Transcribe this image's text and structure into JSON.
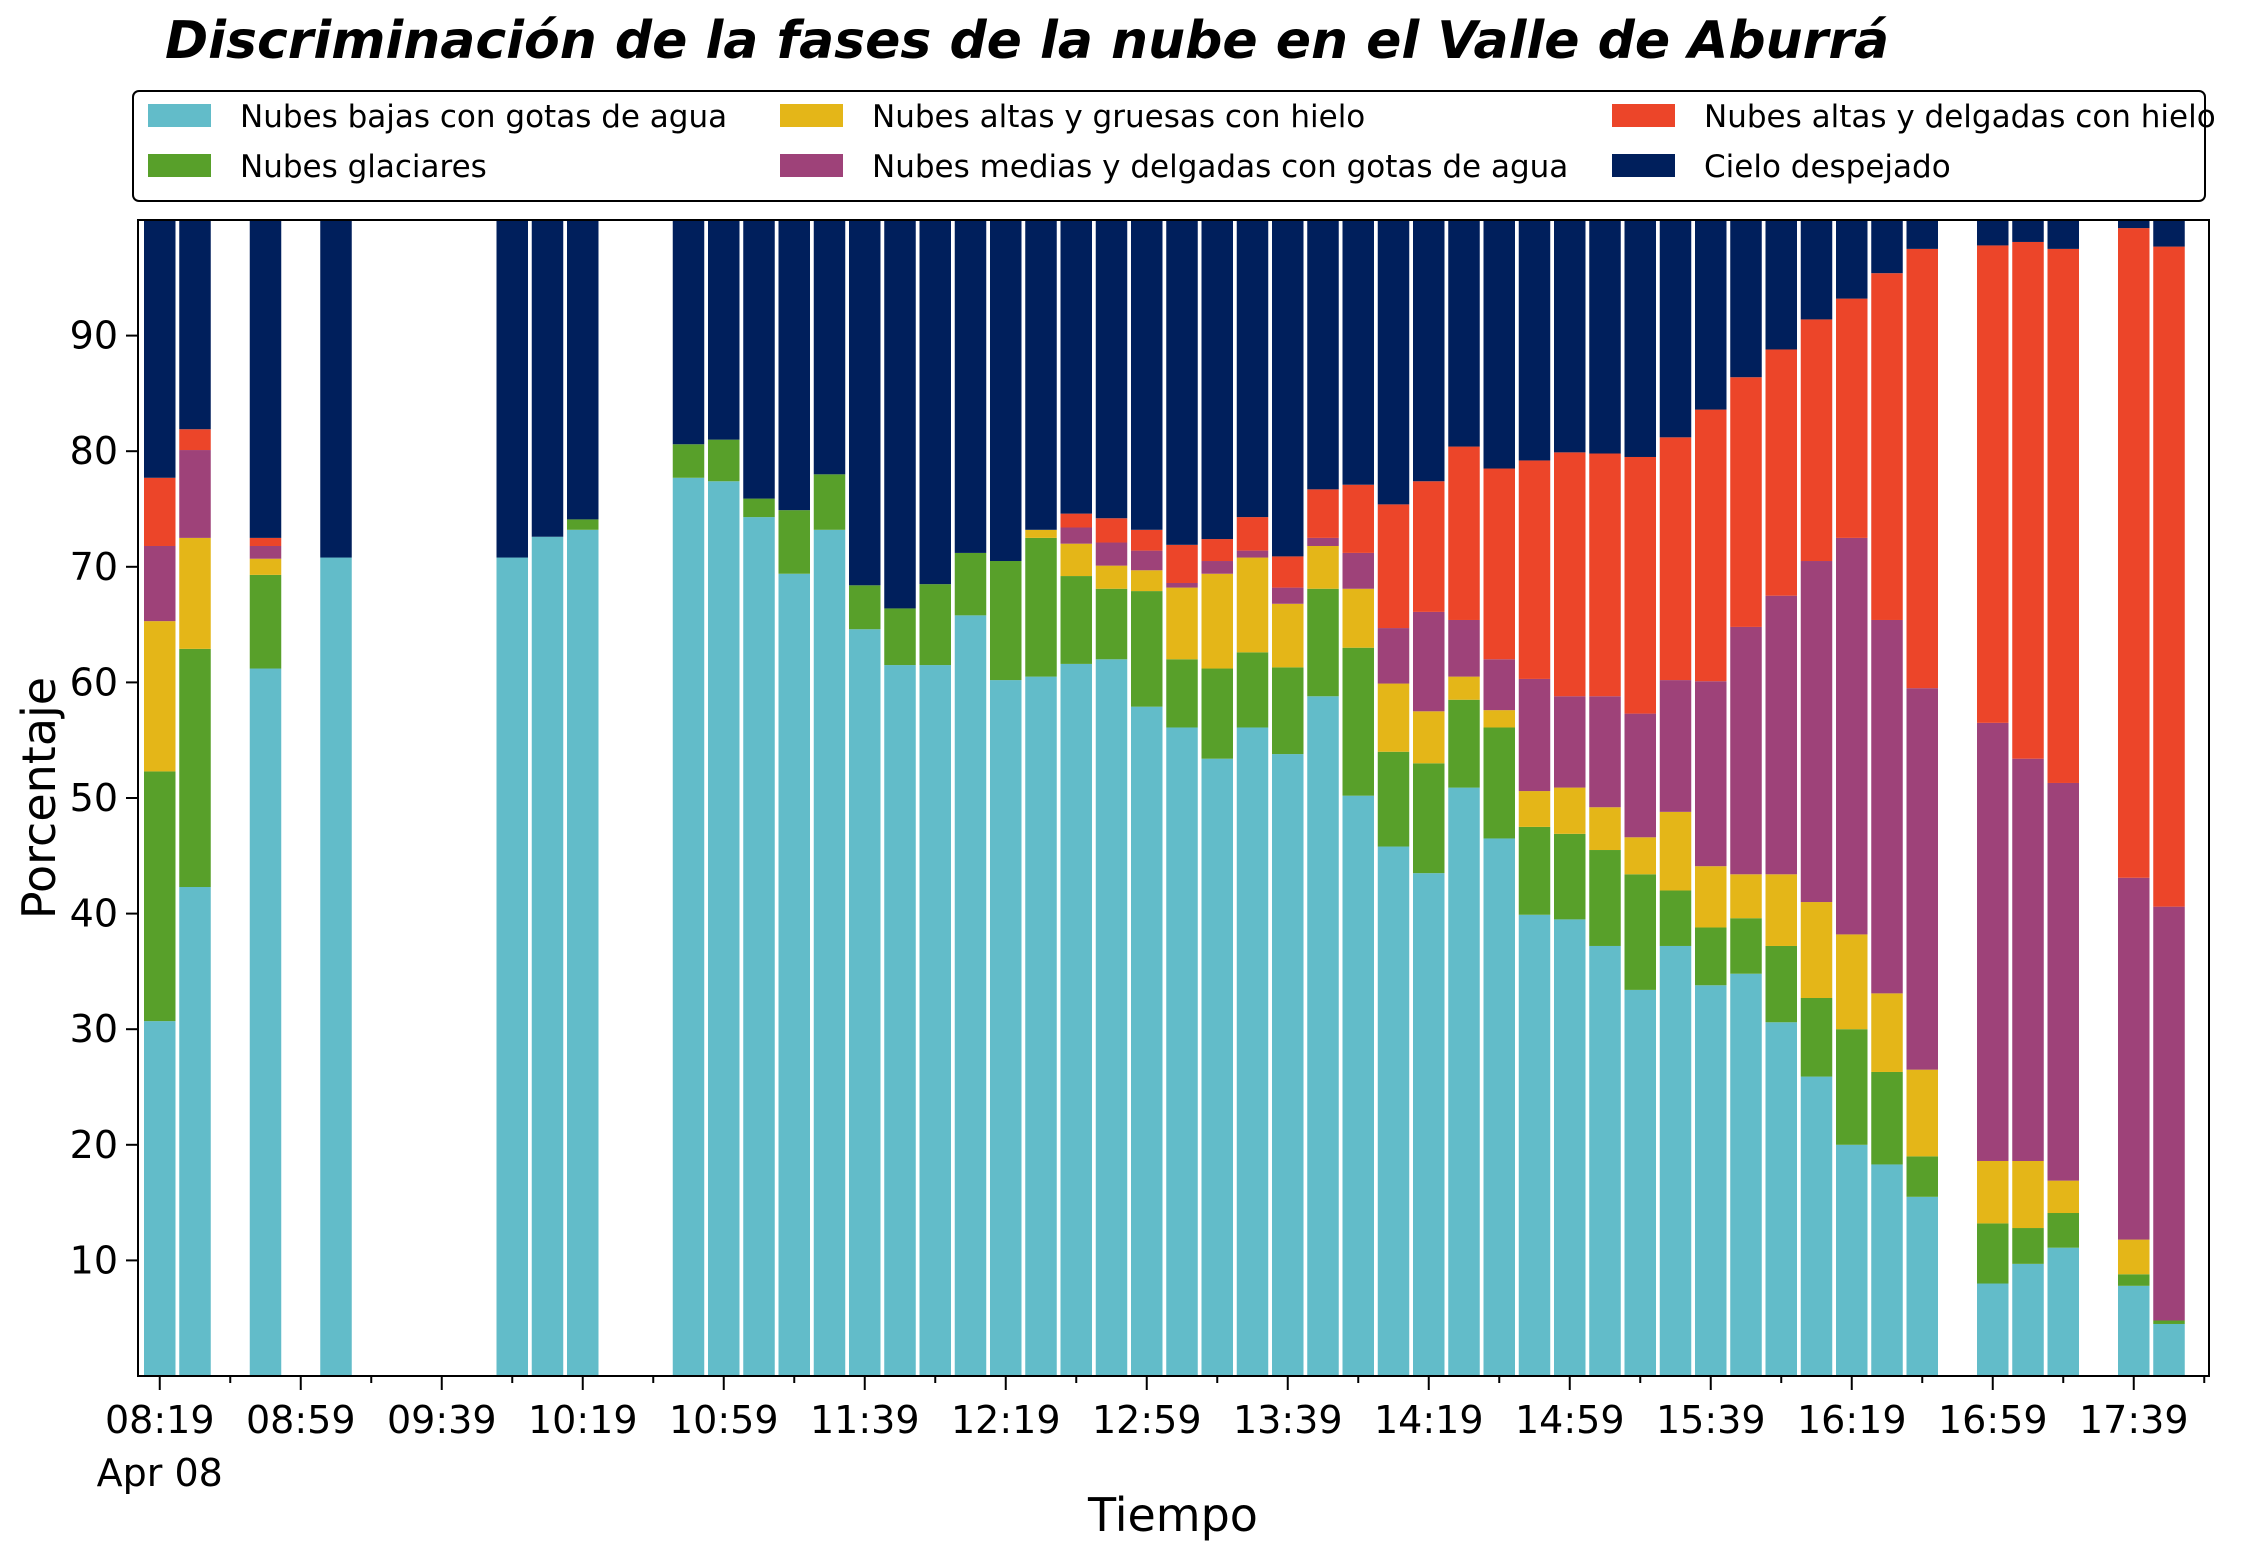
{
  "chart_data": {
    "type": "bar",
    "stacked": true,
    "title": "Discriminación de la fases de la nube en el Valle de Aburrá",
    "xlabel": "Tiempo",
    "ylabel": "Porcentaje",
    "ylim": [
      0,
      100
    ],
    "yticks": [
      10,
      20,
      30,
      40,
      50,
      60,
      70,
      80,
      90
    ],
    "xlim": [
      0,
      59
    ],
    "xticks": [
      {
        "slot": 0,
        "label": "08:19",
        "sublabel": "Apr 08"
      },
      {
        "slot": 4,
        "label": "08:59"
      },
      {
        "slot": 8,
        "label": "09:39"
      },
      {
        "slot": 12,
        "label": "10:19"
      },
      {
        "slot": 16,
        "label": "10:59"
      },
      {
        "slot": 20,
        "label": "11:39"
      },
      {
        "slot": 24,
        "label": "12:19"
      },
      {
        "slot": 28,
        "label": "12:59"
      },
      {
        "slot": 32,
        "label": "13:39"
      },
      {
        "slot": 36,
        "label": "14:19"
      },
      {
        "slot": 40,
        "label": "14:59"
      },
      {
        "slot": 44,
        "label": "15:39"
      },
      {
        "slot": 48,
        "label": "16:19"
      },
      {
        "slot": 52,
        "label": "16:59"
      },
      {
        "slot": 56,
        "label": "17:39"
      }
    ],
    "grid": false,
    "legend_position": "top",
    "series": [
      {
        "name": "Nubes bajas con gotas de agua",
        "color": "#62bcc9"
      },
      {
        "name": "Nubes glaciares",
        "color": "#58a02a"
      },
      {
        "name": "Nubes altas y gruesas con hielo",
        "color": "#e4b618"
      },
      {
        "name": "Nubes medias y delgadas con gotas de agua",
        "color": "#9e4279"
      },
      {
        "name": "Nubes altas y delgadas con hielo",
        "color": "#ec4529"
      },
      {
        "name": "Cielo despejado",
        "color": "#001f5c"
      }
    ],
    "bars": [
      {
        "slot": 0,
        "values": [
          30.7,
          21.6,
          13.0,
          6.5,
          5.9,
          22.3
        ]
      },
      {
        "slot": 1,
        "values": [
          42.3,
          20.6,
          9.6,
          7.6,
          1.8,
          18.1
        ]
      },
      {
        "slot": 3,
        "values": [
          61.2,
          8.1,
          1.4,
          1.1,
          0.7,
          27.5
        ]
      },
      {
        "slot": 5,
        "values": [
          70.8,
          0,
          0,
          0,
          0,
          29.2
        ]
      },
      {
        "slot": 10,
        "values": [
          70.8,
          0,
          0,
          0,
          0,
          29.2
        ]
      },
      {
        "slot": 11,
        "values": [
          72.6,
          0,
          0,
          0,
          0,
          27.4
        ]
      },
      {
        "slot": 12,
        "values": [
          73.2,
          0.9,
          0,
          0,
          0,
          25.9
        ]
      },
      {
        "slot": 15,
        "values": [
          77.7,
          2.9,
          0,
          0,
          0,
          19.4
        ]
      },
      {
        "slot": 16,
        "values": [
          77.4,
          3.6,
          0,
          0,
          0,
          19.0
        ]
      },
      {
        "slot": 17,
        "values": [
          74.3,
          1.6,
          0,
          0,
          0,
          24.1
        ]
      },
      {
        "slot": 18,
        "values": [
          69.4,
          5.5,
          0,
          0,
          0,
          25.1
        ]
      },
      {
        "slot": 19,
        "values": [
          73.2,
          4.8,
          0,
          0,
          0,
          22.0
        ]
      },
      {
        "slot": 20,
        "values": [
          64.6,
          3.8,
          0,
          0,
          0,
          31.6
        ]
      },
      {
        "slot": 21,
        "values": [
          61.5,
          4.9,
          0,
          0,
          0,
          33.6
        ]
      },
      {
        "slot": 22,
        "values": [
          61.5,
          7.0,
          0,
          0,
          0,
          31.5
        ]
      },
      {
        "slot": 23,
        "values": [
          65.8,
          5.4,
          0,
          0,
          0,
          28.8
        ]
      },
      {
        "slot": 24,
        "values": [
          60.2,
          10.3,
          0,
          0,
          0,
          29.5
        ]
      },
      {
        "slot": 25,
        "values": [
          60.5,
          12.0,
          0.7,
          0,
          0,
          26.8
        ]
      },
      {
        "slot": 26,
        "values": [
          61.6,
          7.6,
          2.8,
          1.4,
          1.2,
          25.4
        ]
      },
      {
        "slot": 27,
        "values": [
          62.0,
          6.1,
          2.0,
          2.0,
          2.1,
          25.8
        ]
      },
      {
        "slot": 28,
        "values": [
          57.9,
          10.0,
          1.8,
          1.7,
          1.8,
          26.8
        ]
      },
      {
        "slot": 29,
        "values": [
          56.1,
          5.9,
          6.2,
          0.4,
          3.3,
          28.1
        ]
      },
      {
        "slot": 30,
        "values": [
          53.4,
          7.8,
          8.2,
          1.1,
          1.9,
          27.6
        ]
      },
      {
        "slot": 31,
        "values": [
          56.1,
          6.5,
          8.2,
          0.6,
          2.9,
          25.7
        ]
      },
      {
        "slot": 32,
        "values": [
          53.8,
          7.5,
          5.5,
          1.4,
          2.7,
          29.1
        ]
      },
      {
        "slot": 33,
        "values": [
          58.8,
          9.3,
          3.7,
          0.7,
          4.2,
          23.3
        ]
      },
      {
        "slot": 34,
        "values": [
          50.2,
          12.8,
          5.1,
          3.1,
          5.9,
          22.9
        ]
      },
      {
        "slot": 35,
        "values": [
          45.8,
          8.2,
          5.9,
          4.8,
          10.7,
          24.6
        ]
      },
      {
        "slot": 36,
        "values": [
          43.5,
          9.5,
          4.5,
          8.6,
          11.3,
          22.6
        ]
      },
      {
        "slot": 37,
        "values": [
          50.9,
          7.6,
          2.0,
          4.9,
          15.0,
          19.6
        ]
      },
      {
        "slot": 38,
        "values": [
          46.5,
          9.6,
          1.5,
          4.4,
          16.5,
          21.5
        ]
      },
      {
        "slot": 39,
        "values": [
          39.9,
          7.6,
          3.1,
          9.7,
          18.9,
          20.8
        ]
      },
      {
        "slot": 40,
        "values": [
          39.5,
          7.4,
          4.0,
          7.9,
          21.1,
          20.1
        ]
      },
      {
        "slot": 41,
        "values": [
          37.2,
          8.3,
          3.7,
          9.6,
          21.0,
          20.2
        ]
      },
      {
        "slot": 42,
        "values": [
          33.4,
          10.0,
          3.2,
          10.7,
          22.2,
          20.5
        ]
      },
      {
        "slot": 43,
        "values": [
          37.2,
          4.8,
          6.8,
          11.4,
          21.0,
          18.8
        ]
      },
      {
        "slot": 44,
        "values": [
          33.8,
          5.0,
          5.3,
          16.0,
          23.5,
          16.4
        ]
      },
      {
        "slot": 45,
        "values": [
          34.8,
          4.8,
          3.8,
          21.4,
          21.6,
          13.6
        ]
      },
      {
        "slot": 46,
        "values": [
          30.6,
          6.6,
          6.2,
          24.1,
          21.3,
          11.2
        ]
      },
      {
        "slot": 47,
        "values": [
          25.9,
          6.8,
          8.3,
          29.5,
          20.9,
          8.6
        ]
      },
      {
        "slot": 48,
        "values": [
          20.0,
          10.0,
          8.2,
          34.3,
          20.7,
          6.8
        ]
      },
      {
        "slot": 49,
        "values": [
          18.3,
          8.0,
          6.8,
          32.3,
          30.0,
          4.6
        ]
      },
      {
        "slot": 50,
        "values": [
          15.5,
          3.5,
          7.5,
          33.0,
          38.0,
          2.5
        ]
      },
      {
        "slot": 52,
        "values": [
          8.0,
          5.2,
          5.4,
          37.9,
          41.3,
          2.2
        ]
      },
      {
        "slot": 53,
        "values": [
          9.7,
          3.1,
          5.8,
          34.8,
          44.7,
          1.9
        ]
      },
      {
        "slot": 54,
        "values": [
          11.1,
          3.0,
          2.8,
          34.4,
          46.2,
          2.5
        ]
      },
      {
        "slot": 56,
        "values": [
          7.8,
          1.0,
          3.0,
          31.3,
          56.2,
          0.7
        ]
      },
      {
        "slot": 57,
        "values": [
          4.5,
          0.3,
          0,
          35.8,
          57.1,
          2.3
        ]
      }
    ]
  }
}
